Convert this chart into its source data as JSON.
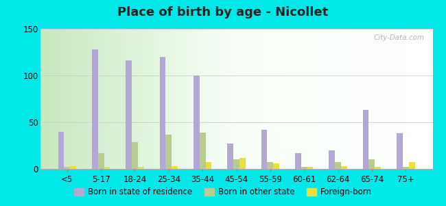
{
  "title": "Place of birth by age - Nicollet",
  "categories": [
    "<5",
    "5-17",
    "18-24",
    "25-34",
    "35-44",
    "45-54",
    "55-59",
    "60-61",
    "62-64",
    "65-74",
    "75+"
  ],
  "born_in_state": [
    40,
    128,
    116,
    120,
    100,
    27,
    42,
    17,
    20,
    63,
    38
  ],
  "born_other_state": [
    2,
    17,
    29,
    37,
    39,
    10,
    7,
    2,
    7,
    10,
    2
  ],
  "foreign_born": [
    3,
    2,
    2,
    3,
    7,
    12,
    6,
    2,
    3,
    2,
    7
  ],
  "ylim": [
    0,
    150
  ],
  "yticks": [
    0,
    50,
    100,
    150
  ],
  "color_state": "#b3a8d4",
  "color_other": "#b8cc90",
  "color_foreign": "#e8e040",
  "background_color": "#00e8e8",
  "bar_width": 0.18,
  "title_fontsize": 13,
  "tick_fontsize": 8.5,
  "legend_fontsize": 8.5,
  "watermark": "City-Data.com"
}
